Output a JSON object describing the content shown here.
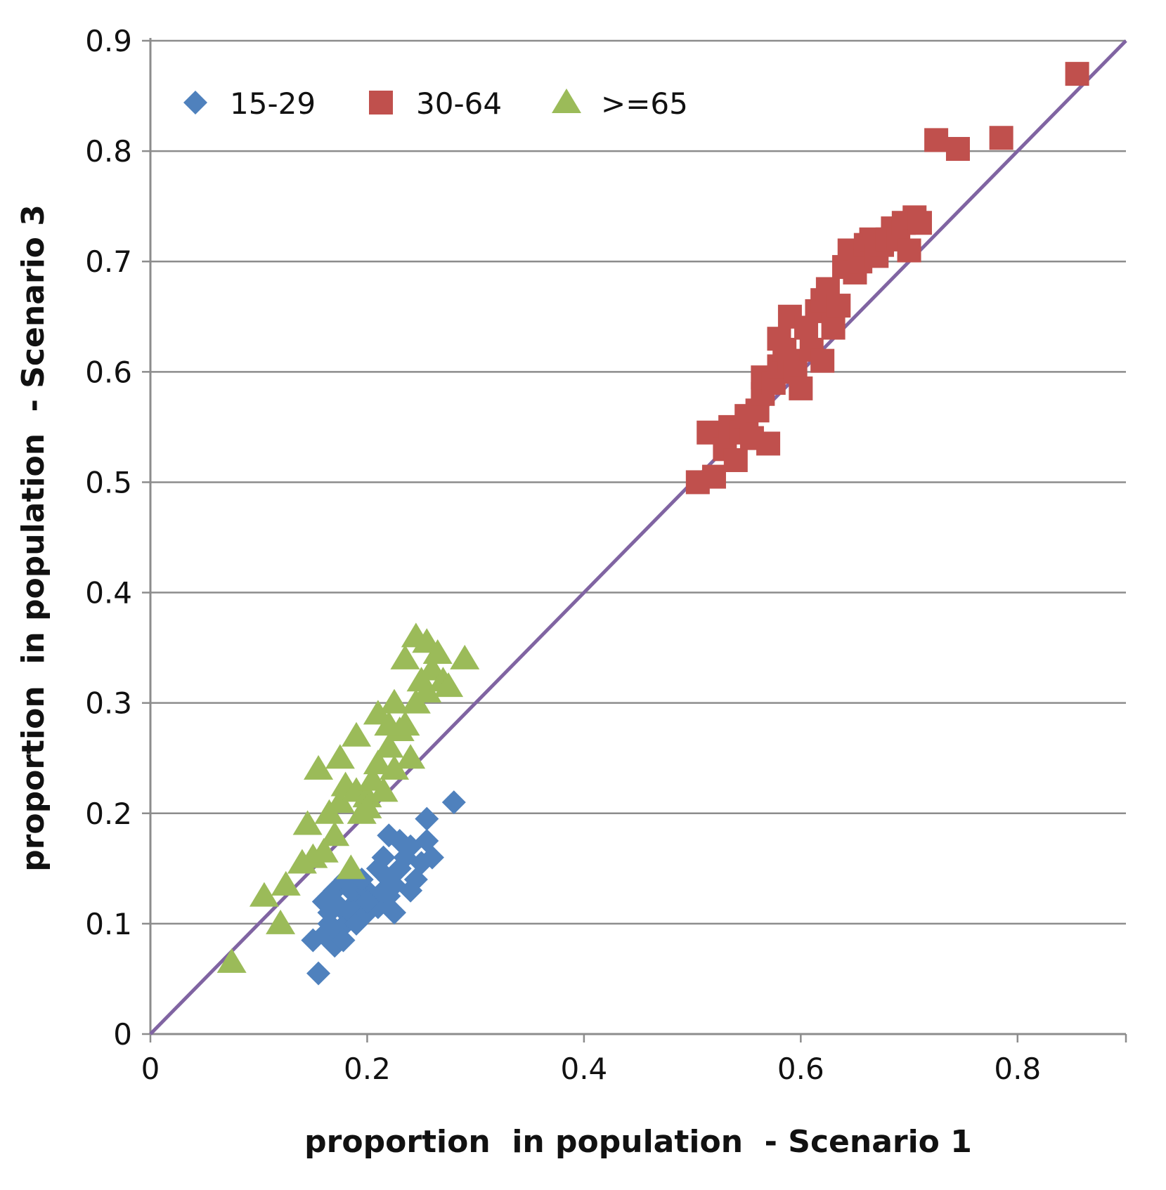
{
  "chart_data": {
    "type": "scatter",
    "title": "",
    "xlabel": "proportion  in population  - Scenario 1",
    "ylabel": "proportion  in population  - Scenario 3",
    "xlim": [
      0,
      0.9
    ],
    "ylim": [
      0,
      0.9
    ],
    "x_ticks": [
      "0",
      "0.2",
      "0.4",
      "0.6",
      "0.8"
    ],
    "x_tick_values": [
      0,
      0.2,
      0.4,
      0.6,
      0.8
    ],
    "y_ticks": [
      "0",
      "0.1",
      "0.2",
      "0.3",
      "0.4",
      "0.5",
      "0.6",
      "0.7",
      "0.8",
      "0.9"
    ],
    "y_tick_values": [
      0,
      0.1,
      0.2,
      0.3,
      0.4,
      0.5,
      0.6,
      0.7,
      0.8,
      0.9
    ],
    "grid": "horizontal",
    "legend_position": "top-left",
    "reference_line": {
      "from": [
        0,
        0
      ],
      "to": [
        0.9,
        0.9
      ],
      "color": "#8064a2"
    },
    "series": [
      {
        "name": "15-29",
        "marker": "diamond",
        "color": "#4f81bd",
        "points": [
          [
            0.155,
            0.055
          ],
          [
            0.15,
            0.085
          ],
          [
            0.16,
            0.09
          ],
          [
            0.165,
            0.1
          ],
          [
            0.17,
            0.08
          ],
          [
            0.175,
            0.095
          ],
          [
            0.18,
            0.1
          ],
          [
            0.185,
            0.11
          ],
          [
            0.19,
            0.12
          ],
          [
            0.16,
            0.12
          ],
          [
            0.17,
            0.13
          ],
          [
            0.175,
            0.115
          ],
          [
            0.185,
            0.13
          ],
          [
            0.19,
            0.1
          ],
          [
            0.2,
            0.11
          ],
          [
            0.2,
            0.13
          ],
          [
            0.205,
            0.12
          ],
          [
            0.21,
            0.115
          ],
          [
            0.215,
            0.13
          ],
          [
            0.22,
            0.14
          ],
          [
            0.21,
            0.15
          ],
          [
            0.215,
            0.16
          ],
          [
            0.22,
            0.125
          ],
          [
            0.225,
            0.11
          ],
          [
            0.23,
            0.15
          ],
          [
            0.235,
            0.16
          ],
          [
            0.24,
            0.17
          ],
          [
            0.245,
            0.14
          ],
          [
            0.25,
            0.155
          ],
          [
            0.255,
            0.175
          ],
          [
            0.26,
            0.16
          ],
          [
            0.255,
            0.195
          ],
          [
            0.23,
            0.175
          ],
          [
            0.22,
            0.18
          ],
          [
            0.24,
            0.13
          ],
          [
            0.195,
            0.14
          ],
          [
            0.18,
            0.14
          ],
          [
            0.165,
            0.11
          ],
          [
            0.178,
            0.085
          ],
          [
            0.28,
            0.21
          ],
          [
            0.2,
            0.12
          ],
          [
            0.225,
            0.135
          ]
        ]
      },
      {
        "name": "30-64",
        "marker": "square",
        "color": "#c0504d",
        "points": [
          [
            0.505,
            0.5
          ],
          [
            0.52,
            0.505
          ],
          [
            0.515,
            0.545
          ],
          [
            0.53,
            0.53
          ],
          [
            0.535,
            0.55
          ],
          [
            0.54,
            0.52
          ],
          [
            0.545,
            0.545
          ],
          [
            0.55,
            0.56
          ],
          [
            0.555,
            0.54
          ],
          [
            0.56,
            0.565
          ],
          [
            0.565,
            0.58
          ],
          [
            0.57,
            0.535
          ],
          [
            0.565,
            0.595
          ],
          [
            0.575,
            0.59
          ],
          [
            0.58,
            0.605
          ],
          [
            0.585,
            0.62
          ],
          [
            0.59,
            0.61
          ],
          [
            0.595,
            0.6
          ],
          [
            0.6,
            0.585
          ],
          [
            0.58,
            0.63
          ],
          [
            0.59,
            0.65
          ],
          [
            0.605,
            0.64
          ],
          [
            0.61,
            0.62
          ],
          [
            0.615,
            0.655
          ],
          [
            0.62,
            0.61
          ],
          [
            0.62,
            0.665
          ],
          [
            0.625,
            0.675
          ],
          [
            0.63,
            0.64
          ],
          [
            0.635,
            0.66
          ],
          [
            0.64,
            0.695
          ],
          [
            0.645,
            0.71
          ],
          [
            0.65,
            0.69
          ],
          [
            0.655,
            0.7
          ],
          [
            0.66,
            0.715
          ],
          [
            0.665,
            0.72
          ],
          [
            0.67,
            0.705
          ],
          [
            0.675,
            0.715
          ],
          [
            0.68,
            0.72
          ],
          [
            0.685,
            0.73
          ],
          [
            0.69,
            0.72
          ],
          [
            0.695,
            0.735
          ],
          [
            0.7,
            0.71
          ],
          [
            0.705,
            0.74
          ],
          [
            0.71,
            0.735
          ],
          [
            0.725,
            0.81
          ],
          [
            0.745,
            0.802
          ],
          [
            0.785,
            0.812
          ],
          [
            0.855,
            0.87
          ]
        ]
      },
      {
        "name": ">=65",
        "marker": "triangle",
        "color": "#9bbb59",
        "points": [
          [
            0.075,
            0.065
          ],
          [
            0.105,
            0.125
          ],
          [
            0.12,
            0.1
          ],
          [
            0.125,
            0.135
          ],
          [
            0.14,
            0.155
          ],
          [
            0.145,
            0.19
          ],
          [
            0.15,
            0.16
          ],
          [
            0.155,
            0.24
          ],
          [
            0.16,
            0.165
          ],
          [
            0.165,
            0.2
          ],
          [
            0.17,
            0.18
          ],
          [
            0.175,
            0.25
          ],
          [
            0.175,
            0.21
          ],
          [
            0.18,
            0.225
          ],
          [
            0.185,
            0.15
          ],
          [
            0.19,
            0.22
          ],
          [
            0.19,
            0.27
          ],
          [
            0.195,
            0.2
          ],
          [
            0.2,
            0.215
          ],
          [
            0.205,
            0.23
          ],
          [
            0.21,
            0.29
          ],
          [
            0.21,
            0.245
          ],
          [
            0.215,
            0.22
          ],
          [
            0.22,
            0.26
          ],
          [
            0.225,
            0.3
          ],
          [
            0.225,
            0.24
          ],
          [
            0.23,
            0.275
          ],
          [
            0.235,
            0.28
          ],
          [
            0.235,
            0.34
          ],
          [
            0.24,
            0.25
          ],
          [
            0.245,
            0.3
          ],
          [
            0.245,
            0.36
          ],
          [
            0.25,
            0.32
          ],
          [
            0.255,
            0.355
          ],
          [
            0.255,
            0.31
          ],
          [
            0.26,
            0.33
          ],
          [
            0.265,
            0.345
          ],
          [
            0.27,
            0.32
          ],
          [
            0.275,
            0.315
          ],
          [
            0.29,
            0.34
          ],
          [
            0.2,
            0.205
          ],
          [
            0.22,
            0.28
          ]
        ]
      }
    ]
  }
}
